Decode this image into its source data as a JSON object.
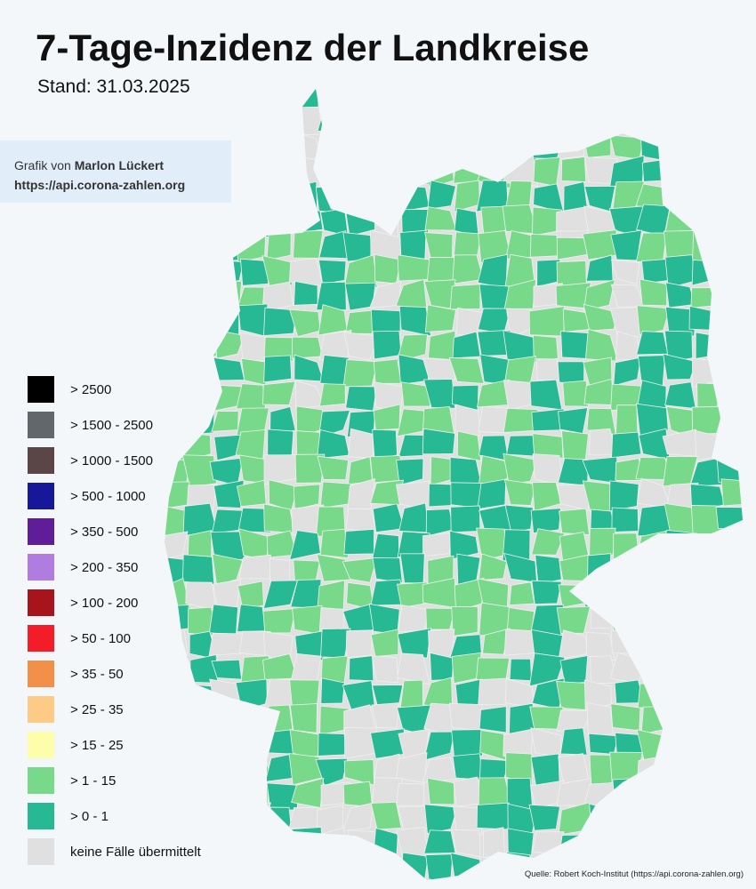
{
  "header": {
    "title": "7-Tage-Inzidenz der Landkreise",
    "subtitle": "Stand: 31.03.2025"
  },
  "credit": {
    "prefix": "Grafik von",
    "author": "Marlon Lückert",
    "url": "https://api.corona-zahlen.org"
  },
  "legend": [
    {
      "label": "> 2500",
      "color": "#000000"
    },
    {
      "label": "> 1500 - 2500",
      "color": "#62676b"
    },
    {
      "label": "> 1000 - 1500",
      "color": "#5a4646"
    },
    {
      "label": "> 500 - 1000",
      "color": "#17179a"
    },
    {
      "label": "> 350 - 500",
      "color": "#5f1d9a"
    },
    {
      "label": "> 200 - 350",
      "color": "#b07ce0"
    },
    {
      "label": "> 100 - 200",
      "color": "#a8141c"
    },
    {
      "label": "> 50 - 100",
      "color": "#f21d28"
    },
    {
      "label": "> 35 - 50",
      "color": "#f2904a"
    },
    {
      "label": "> 25 - 35",
      "color": "#fecb86"
    },
    {
      "label": "> 15 - 25",
      "color": "#fefdaa"
    },
    {
      "label": "> 1 - 15",
      "color": "#78d98a"
    },
    {
      "label": "> 0 - 1",
      "color": "#26b994"
    },
    {
      "label": "keine Fälle übermittelt",
      "color": "#e0e0e0"
    }
  ],
  "source": "Quelle: Robert Koch-Institut (https://api.corona-zahlen.org)"
}
